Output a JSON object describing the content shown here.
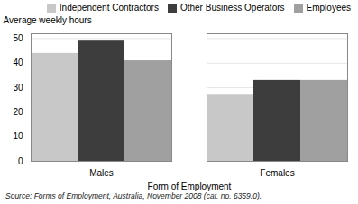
{
  "chart_data": {
    "type": "bar",
    "xlabel": "Form of Employment",
    "ylabel": "Average weekly hours",
    "caption": "Source: Forms of Employment, Australia, November 2008 (cat. no. 6359.0).",
    "categories": [
      "Males",
      "Females"
    ],
    "series": [
      {
        "name": "Independent Contractors",
        "color": "#c8c8c8",
        "values": [
          44,
          27
        ]
      },
      {
        "name": "Other Business Operators",
        "color": "#3d3d3d",
        "values": [
          49,
          33
        ]
      },
      {
        "name": "Employees",
        "color": "#a0a0a0",
        "values": [
          41,
          33
        ]
      }
    ],
    "ylim": [
      0,
      52
    ],
    "yticks": [
      0,
      10,
      20,
      30,
      40,
      50
    ],
    "grid": true,
    "legend": "upper right"
  }
}
